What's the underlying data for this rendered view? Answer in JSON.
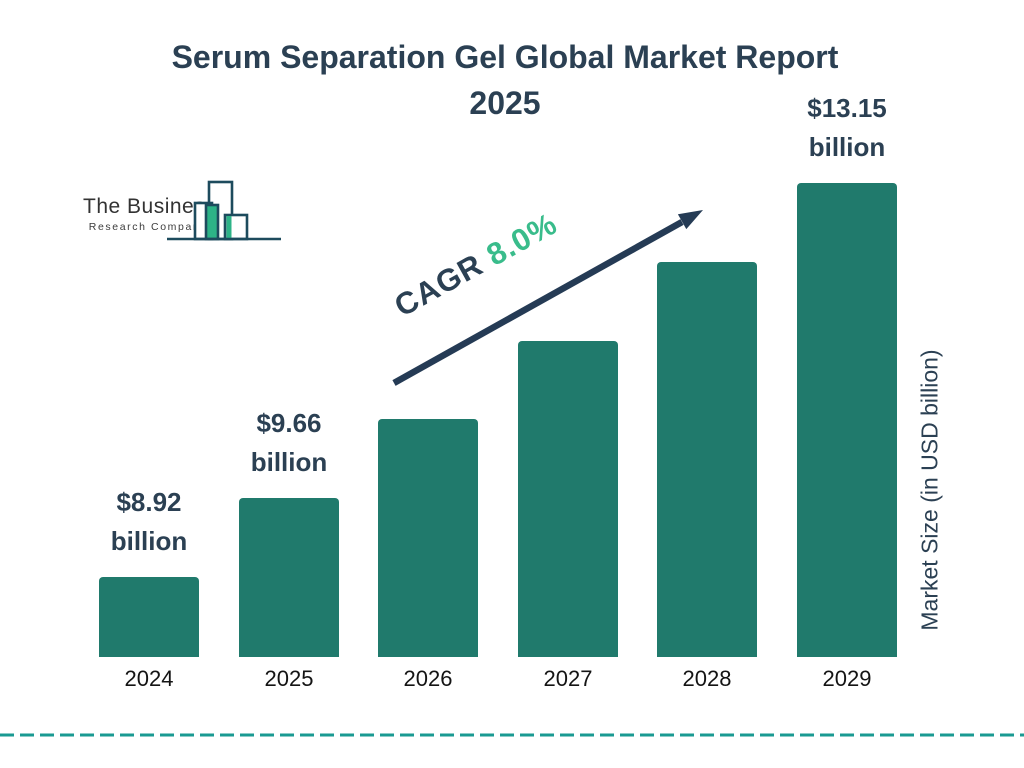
{
  "title": {
    "line1": "Serum Separation Gel Global Market Report",
    "line2": "2025"
  },
  "logo": {
    "name": "The Business",
    "subname": "Research Company"
  },
  "cagr": {
    "prefix": "CAGR",
    "value": "8.0%"
  },
  "y_axis_label": "Market Size (in USD billion)",
  "colors": {
    "bar": "#207a6c",
    "navy": "#2b4053",
    "green": "#39bc8b",
    "dashed_line": "#1a9a92",
    "logo_outline": "#1d4b5d",
    "logo_green": "#2db387"
  },
  "chart_data": {
    "type": "bar",
    "title": "Serum Separation Gel Global Market Report 2025",
    "categories": [
      "2024",
      "2025",
      "2026",
      "2027",
      "2028",
      "2029"
    ],
    "values": [
      8.92,
      9.66,
      10.43,
      11.27,
      12.17,
      13.15
    ],
    "unit": "USD billion",
    "value_labels": [
      [
        "$8.92",
        "billion"
      ],
      [
        "$9.66",
        "billion"
      ],
      null,
      null,
      null,
      [
        "$13.15",
        "billion"
      ]
    ],
    "cagr": "8.0%",
    "ylabel": "Market Size (in USD billion)",
    "xlabel": "",
    "grid": false,
    "legend": false
  }
}
